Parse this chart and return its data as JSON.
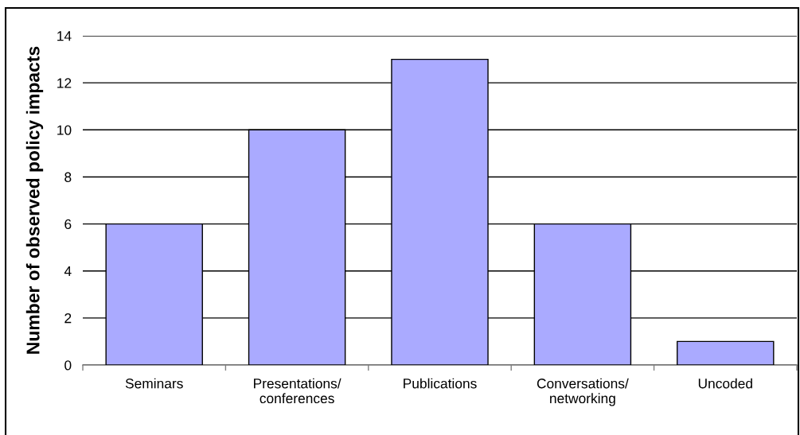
{
  "chart_data": {
    "type": "bar",
    "ylabel": "Number of observed policy impacts",
    "categories": [
      "Seminars",
      "Presentations/\nconferences",
      "Publications",
      "Conversations/\nnetworking",
      "Uncoded"
    ],
    "values": [
      6,
      10,
      13,
      6,
      1
    ],
    "color": "#aaaaff",
    "ylim": [
      0,
      14
    ],
    "yticks": [
      0,
      2,
      4,
      6,
      8,
      10,
      12,
      14
    ],
    "grid": "y"
  }
}
